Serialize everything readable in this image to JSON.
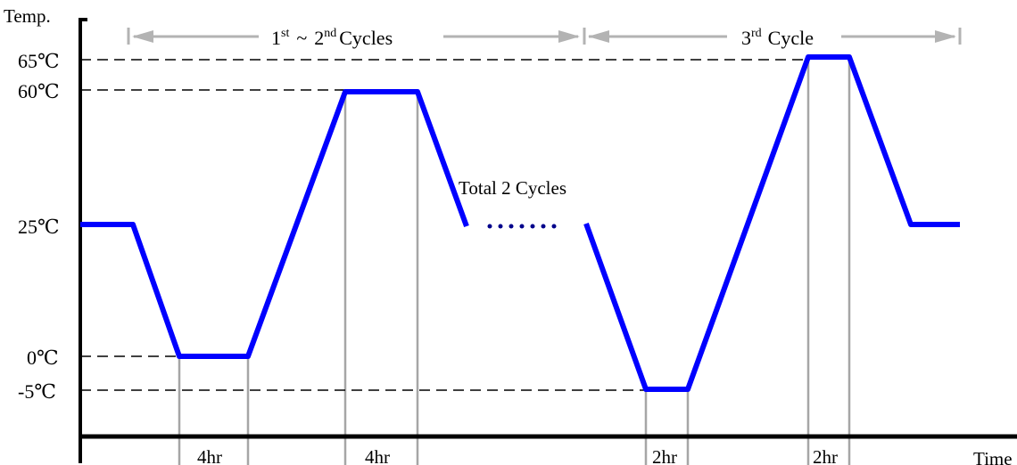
{
  "axes": {
    "y_title": "Temp.",
    "x_title": "Time"
  },
  "temperature_labels": [
    {
      "value": 65,
      "text": "65℃"
    },
    {
      "value": 60,
      "text": "60℃"
    },
    {
      "value": 25,
      "text": "25℃"
    },
    {
      "value": 0,
      "text": "0℃"
    },
    {
      "value": -5,
      "text": "-5℃"
    }
  ],
  "cycle_spans": [
    {
      "ordinal": "1",
      "ordinal_sup": "st",
      "sep": "~",
      "ordinal2": "2",
      "ordinal2_sup": "nd",
      "word": "Cycles"
    },
    {
      "ordinal": "3",
      "ordinal_sup": "rd",
      "word": "Cycle"
    }
  ],
  "durations": [
    "4hr",
    "4hr",
    "2hr",
    "2hr"
  ],
  "annotation": "Total 2 Cycles",
  "colors": {
    "profile": "#0000ff",
    "guides": "#a6a6a6",
    "axis": "#000000",
    "dots": "#00008b"
  }
}
